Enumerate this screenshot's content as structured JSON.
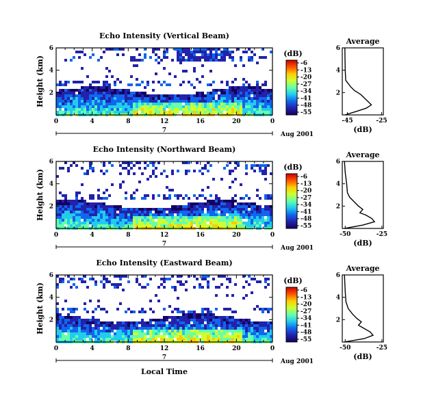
{
  "chart_data": [
    {
      "type": "heatmap",
      "title": "Echo Intensity (Vertical Beam)",
      "xlabel": "",
      "ylabel": "Height (km)",
      "x_ticks": [
        "0",
        "4",
        "8",
        "12",
        "16",
        "20",
        "0"
      ],
      "y_ticks": [
        "6",
        "4",
        "2"
      ],
      "xlim": [
        0,
        24
      ],
      "ylim": [
        0,
        6
      ],
      "date_day": "7",
      "date_month": "Aug 2001",
      "profile": {
        "title": "Average",
        "xlabel": "(dB)",
        "x_ticks": [
          "-45",
          "-25"
        ],
        "xlim": [
          -48,
          -24
        ],
        "points": [
          [
            -46.5,
            0
          ],
          [
            -40,
            0.3
          ],
          [
            -34,
            0.6
          ],
          [
            -31,
            0.9
          ],
          [
            -33,
            1.2
          ],
          [
            -35,
            1.5
          ],
          [
            -37,
            1.8
          ],
          [
            -39,
            2.0
          ],
          [
            -41,
            2.2
          ],
          [
            -43,
            2.5
          ],
          [
            -44.5,
            2.8
          ],
          [
            -46,
            3.1
          ],
          [
            -46.3,
            4.0
          ],
          [
            -46.4,
            5.0
          ],
          [
            -46.5,
            6.0
          ]
        ]
      }
    },
    {
      "type": "heatmap",
      "title": "Echo Intensity (Northward Beam)",
      "xlabel": "",
      "ylabel": "Height (km)",
      "x_ticks": [
        "0",
        "4",
        "8",
        "12",
        "16",
        "20",
        "0"
      ],
      "y_ticks": [
        "6",
        "4",
        "2"
      ],
      "xlim": [
        0,
        24
      ],
      "ylim": [
        0,
        6
      ],
      "date_day": "7",
      "date_month": "Aug 2001",
      "profile": {
        "title": "Average",
        "xlabel": "(dB)",
        "x_ticks": [
          "-50",
          "-25"
        ],
        "xlim": [
          -52,
          -24
        ],
        "points": [
          [
            -50.5,
            0
          ],
          [
            -38,
            0.3
          ],
          [
            -30,
            0.6
          ],
          [
            -32,
            0.9
          ],
          [
            -36,
            1.2
          ],
          [
            -40,
            1.4
          ],
          [
            -38,
            1.7
          ],
          [
            -41,
            2.0
          ],
          [
            -44,
            2.4
          ],
          [
            -47,
            2.8
          ],
          [
            -48.5,
            3.2
          ],
          [
            -49,
            4.0
          ],
          [
            -50,
            5.0
          ],
          [
            -50.5,
            6.0
          ]
        ]
      }
    },
    {
      "type": "heatmap",
      "title": "Echo Intensity (Eastward Beam)",
      "xlabel": "Local Time",
      "ylabel": "Height (km)",
      "x_ticks": [
        "0",
        "4",
        "8",
        "12",
        "16",
        "20",
        "0"
      ],
      "y_ticks": [
        "6",
        "4",
        "2"
      ],
      "xlim": [
        0,
        24
      ],
      "ylim": [
        0,
        6
      ],
      "date_day": "7",
      "date_month": "Aug 2001",
      "profile": {
        "title": "Average",
        "xlabel": "(dB)",
        "x_ticks": [
          "-50",
          "-25"
        ],
        "xlim": [
          -52,
          -24
        ],
        "points": [
          [
            -50.5,
            0
          ],
          [
            -37,
            0.3
          ],
          [
            -31,
            0.6
          ],
          [
            -33,
            0.9
          ],
          [
            -37,
            1.2
          ],
          [
            -41,
            1.5
          ],
          [
            -39,
            1.8
          ],
          [
            -42,
            2.1
          ],
          [
            -45,
            2.5
          ],
          [
            -48,
            3.0
          ],
          [
            -49.5,
            3.6
          ],
          [
            -50,
            4.5
          ],
          [
            -50.5,
            6.0
          ]
        ]
      }
    }
  ],
  "colorbar": {
    "unit": "(dB)",
    "labels": [
      "-6",
      "-13",
      "-20",
      "-27",
      "-34",
      "-41",
      "-48",
      "-55"
    ],
    "colors": [
      "#cc0000",
      "#ff5500",
      "#ffcc00",
      "#ccff33",
      "#66ffaa",
      "#22ccee",
      "#1166ee",
      "#2222aa",
      "#150060"
    ]
  }
}
